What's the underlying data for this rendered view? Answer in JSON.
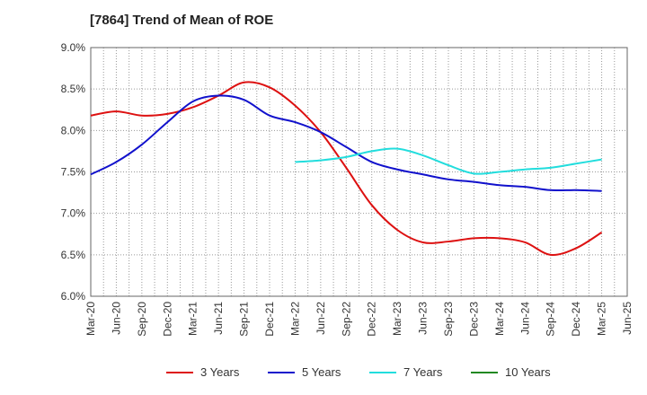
{
  "chart_data": {
    "type": "line",
    "title": "[7864]  Trend of Mean of ROE",
    "xlabel": "",
    "ylabel": "",
    "y_ticks": [
      "6.0%",
      "6.5%",
      "7.0%",
      "7.5%",
      "8.0%",
      "8.5%",
      "9.0%"
    ],
    "ylim": [
      6.0,
      9.0
    ],
    "x_ticks": [
      "Mar-20",
      "Jun-20",
      "Sep-20",
      "Dec-20",
      "Mar-21",
      "Jun-21",
      "Sep-21",
      "Dec-21",
      "Mar-22",
      "Jun-22",
      "Sep-22",
      "Dec-22",
      "Mar-23",
      "Jun-23",
      "Sep-23",
      "Dec-23",
      "Mar-24",
      "Jun-24",
      "Sep-24",
      "Dec-24",
      "Mar-25",
      "Jun-25"
    ],
    "grid": true,
    "legend_position": "bottom",
    "series": [
      {
        "name": "3 Years",
        "color": "#dd1111",
        "values": [
          8.18,
          8.23,
          8.18,
          8.2,
          8.28,
          8.42,
          8.58,
          8.52,
          8.3,
          7.98,
          7.55,
          7.1,
          6.8,
          6.65,
          6.66,
          6.7,
          6.7,
          6.65,
          6.5,
          6.58,
          6.77,
          null
        ]
      },
      {
        "name": "5 Years",
        "color": "#1111cc",
        "values": [
          7.47,
          7.62,
          7.83,
          8.1,
          8.35,
          8.42,
          8.37,
          8.18,
          8.1,
          7.98,
          7.8,
          7.62,
          7.53,
          7.47,
          7.41,
          7.38,
          7.34,
          7.32,
          7.28,
          7.28,
          7.27,
          null
        ]
      },
      {
        "name": "7 Years",
        "color": "#22dddd",
        "values": [
          null,
          null,
          null,
          null,
          null,
          null,
          null,
          null,
          7.62,
          7.64,
          7.68,
          7.75,
          7.78,
          7.7,
          7.58,
          7.48,
          7.5,
          7.53,
          7.55,
          7.6,
          7.65,
          null
        ]
      },
      {
        "name": "10 Years",
        "color": "#228822",
        "values": [
          null,
          null,
          null,
          null,
          null,
          null,
          null,
          null,
          null,
          null,
          null,
          null,
          null,
          null,
          null,
          null,
          null,
          null,
          null,
          null,
          null,
          null
        ]
      }
    ]
  }
}
